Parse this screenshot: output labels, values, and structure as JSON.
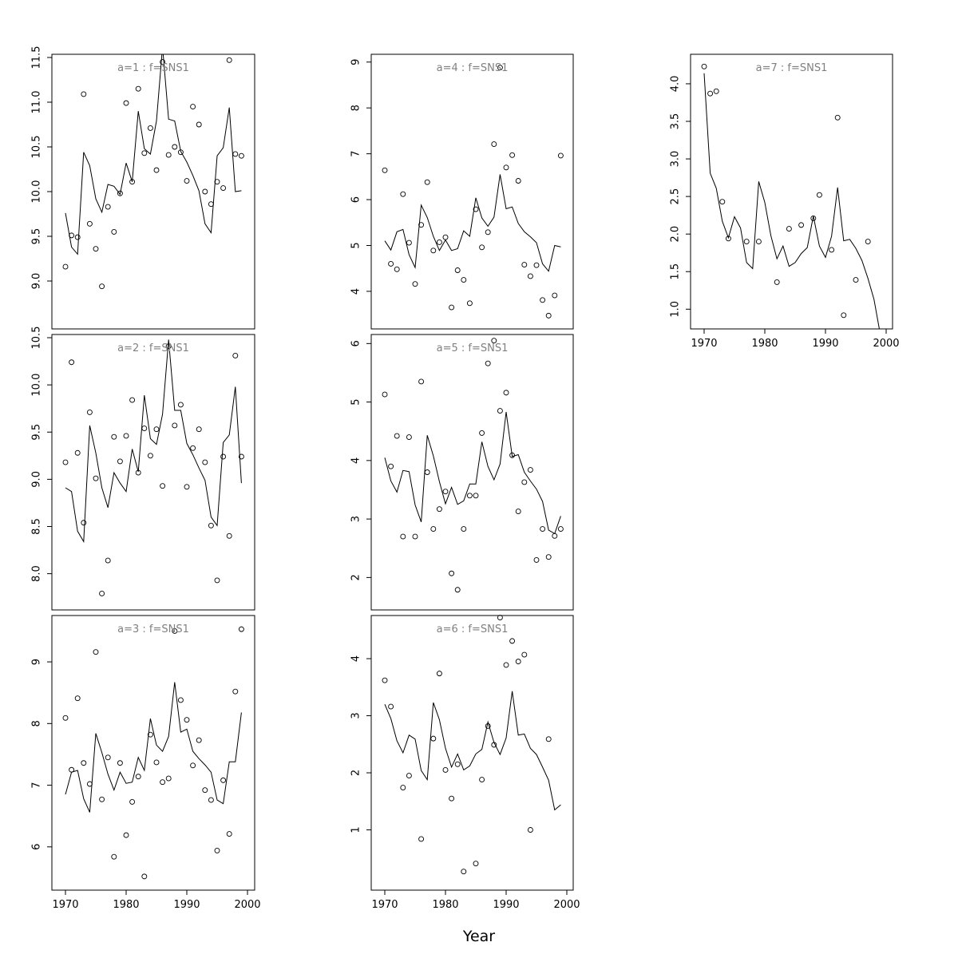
{
  "xlabel": "Year",
  "chart_data": [
    {
      "type": "scatter",
      "title": "a=1 : f=SNS1",
      "xlim": [
        1970,
        1999
      ],
      "ylim": [
        8.5,
        11.5
      ],
      "yticks": [
        9.0,
        9.5,
        10.0,
        10.5,
        11.0,
        11.5
      ],
      "xticks": [],
      "points": {
        "x": [
          1970,
          1971,
          1972,
          1973,
          1974,
          1975,
          1976,
          1977,
          1978,
          1979,
          1980,
          1981,
          1982,
          1983,
          1984,
          1985,
          1986,
          1987,
          1988,
          1989,
          1990,
          1991,
          1992,
          1993,
          1994,
          1995,
          1996,
          1997,
          1998,
          1999
        ],
        "y": [
          9.16,
          9.51,
          9.49,
          11.09,
          9.64,
          9.36,
          8.94,
          9.83,
          9.55,
          9.98,
          10.99,
          10.11,
          11.15,
          10.43,
          10.71,
          10.24,
          11.45,
          10.41,
          10.5,
          10.44,
          10.12,
          10.95,
          10.75,
          10.0,
          9.86,
          10.11,
          10.04,
          11.47,
          10.42,
          10.4
        ]
      },
      "fitted": {
        "x": [
          1970,
          1971,
          1972,
          1973,
          1974,
          1975,
          1976,
          1977,
          1978,
          1979,
          1980,
          1981,
          1982,
          1983,
          1984,
          1985,
          1986,
          1987,
          1988,
          1989,
          1990,
          1991,
          1992,
          1993,
          1994,
          1995,
          1996,
          1997,
          1998,
          1999
        ],
        "y": [
          9.76,
          9.38,
          9.3,
          10.44,
          10.29,
          9.92,
          9.77,
          10.08,
          10.06,
          9.97,
          10.32,
          10.11,
          10.9,
          10.48,
          10.42,
          10.79,
          11.62,
          10.81,
          10.79,
          10.45,
          10.33,
          10.18,
          10.01,
          9.64,
          9.54,
          10.4,
          10.49,
          10.94,
          10.0,
          10.01
        ]
      }
    },
    {
      "type": "scatter",
      "title": "a=2 : f=SNS1",
      "xlim": [
        1970,
        1999
      ],
      "ylim": [
        7.65,
        10.5
      ],
      "yticks": [
        8.0,
        8.5,
        9.0,
        9.5,
        10.0,
        10.5
      ],
      "xticks": [],
      "points": {
        "x": [
          1970,
          1971,
          1972,
          1973,
          1974,
          1975,
          1976,
          1977,
          1978,
          1979,
          1980,
          1981,
          1982,
          1983,
          1984,
          1985,
          1986,
          1987,
          1988,
          1989,
          1990,
          1991,
          1992,
          1993,
          1994,
          1995,
          1996,
          1997,
          1998,
          1999
        ],
        "y": [
          9.18,
          10.24,
          9.28,
          8.54,
          9.71,
          9.01,
          7.79,
          8.14,
          9.45,
          9.19,
          9.46,
          9.84,
          9.07,
          9.54,
          9.25,
          9.53,
          8.93,
          10.41,
          9.57,
          9.79,
          8.92,
          9.33,
          9.53,
          9.18,
          8.51,
          7.93,
          9.24,
          8.4,
          10.31,
          9.24
        ]
      },
      "fitted": {
        "x": [
          1970,
          1971,
          1972,
          1973,
          1974,
          1975,
          1976,
          1977,
          1978,
          1979,
          1980,
          1981,
          1982,
          1983,
          1984,
          1985,
          1986,
          1987,
          1988,
          1989,
          1990,
          1991,
          1992,
          1993,
          1994,
          1995,
          1996,
          1997,
          1998,
          1999
        ],
        "y": [
          8.91,
          8.87,
          8.45,
          8.34,
          9.57,
          9.28,
          8.91,
          8.7,
          9.07,
          8.96,
          8.87,
          9.32,
          9.08,
          9.89,
          9.43,
          9.37,
          9.69,
          10.48,
          9.73,
          9.73,
          9.38,
          9.26,
          9.12,
          8.99,
          8.6,
          8.51,
          9.39,
          9.47,
          9.98,
          8.96
        ]
      }
    },
    {
      "type": "scatter",
      "title": "a=3 : f=SNS1",
      "xlim": [
        1970,
        1999
      ],
      "ylim": [
        5.35,
        9.7
      ],
      "yticks": [
        6,
        7,
        8,
        9
      ],
      "xticks": [
        1970,
        1980,
        1990,
        2000
      ],
      "points": {
        "x": [
          1970,
          1971,
          1972,
          1973,
          1974,
          1975,
          1976,
          1977,
          1978,
          1979,
          1980,
          1981,
          1982,
          1983,
          1984,
          1985,
          1986,
          1987,
          1988,
          1989,
          1990,
          1991,
          1992,
          1993,
          1994,
          1995,
          1996,
          1997,
          1998,
          1999
        ],
        "y": [
          8.09,
          7.25,
          8.41,
          7.36,
          7.02,
          9.16,
          6.77,
          7.45,
          5.84,
          7.36,
          6.19,
          6.73,
          7.14,
          5.52,
          7.82,
          7.37,
          7.05,
          7.11,
          9.5,
          8.38,
          8.06,
          7.32,
          7.73,
          6.92,
          6.76,
          5.94,
          7.08,
          6.21,
          8.52,
          9.53
        ]
      },
      "fitted": {
        "x": [
          1970,
          1971,
          1972,
          1973,
          1974,
          1975,
          1976,
          1977,
          1978,
          1979,
          1980,
          1981,
          1982,
          1983,
          1984,
          1985,
          1986,
          1987,
          1988,
          1989,
          1990,
          1991,
          1992,
          1993,
          1994,
          1995,
          1996,
          1997,
          1998,
          1999
        ],
        "y": [
          6.85,
          7.21,
          7.24,
          6.78,
          6.56,
          7.84,
          7.53,
          7.18,
          6.92,
          7.21,
          7.03,
          7.05,
          7.45,
          7.24,
          8.08,
          7.65,
          7.55,
          7.79,
          8.67,
          7.86,
          7.91,
          7.55,
          7.43,
          7.33,
          7.21,
          6.76,
          6.7,
          7.38,
          7.38,
          8.18
        ]
      }
    },
    {
      "type": "scatter",
      "title": "a=4 : f=SNS1",
      "xlim": [
        1970,
        1999
      ],
      "ylim": [
        3.25,
        9.1
      ],
      "yticks": [
        4,
        5,
        6,
        7,
        8,
        9
      ],
      "xticks": [],
      "points": {
        "x": [
          1970,
          1971,
          1972,
          1973,
          1974,
          1975,
          1976,
          1977,
          1978,
          1979,
          1980,
          1981,
          1982,
          1983,
          1984,
          1985,
          1986,
          1987,
          1988,
          1989,
          1990,
          1991,
          1992,
          1993,
          1994,
          1995,
          1996,
          1997,
          1998,
          1999
        ],
        "y": [
          6.64,
          4.6,
          4.48,
          6.12,
          5.06,
          4.16,
          5.45,
          6.38,
          4.89,
          5.07,
          5.18,
          3.65,
          4.46,
          4.25,
          3.74,
          5.79,
          4.96,
          5.29,
          7.21,
          8.88,
          6.7,
          6.97,
          6.41,
          4.58,
          4.33,
          4.57,
          3.81,
          3.47,
          3.91,
          6.96
        ]
      },
      "fitted": {
        "x": [
          1970,
          1971,
          1972,
          1973,
          1974,
          1975,
          1976,
          1977,
          1978,
          1979,
          1980,
          1981,
          1982,
          1983,
          1984,
          1985,
          1986,
          1987,
          1988,
          1989,
          1990,
          1991,
          1992,
          1993,
          1994,
          1995,
          1996,
          1997,
          1998,
          1999
        ],
        "y": [
          5.1,
          4.9,
          5.3,
          5.35,
          4.8,
          4.52,
          5.88,
          5.61,
          5.2,
          4.89,
          5.12,
          4.89,
          4.93,
          5.32,
          5.2,
          6.04,
          5.6,
          5.42,
          5.62,
          6.55,
          5.8,
          5.84,
          5.48,
          5.3,
          5.19,
          5.06,
          4.6,
          4.44,
          5.0,
          4.97
        ]
      }
    },
    {
      "type": "scatter",
      "title": "a=5 : f=SNS1",
      "xlim": [
        1970,
        1999
      ],
      "ylim": [
        1.5,
        6.1
      ],
      "yticks": [
        2,
        3,
        4,
        5,
        6
      ],
      "xticks": [],
      "points": {
        "x": [
          1970,
          1971,
          1972,
          1973,
          1974,
          1975,
          1976,
          1977,
          1978,
          1979,
          1980,
          1981,
          1982,
          1983,
          1984,
          1985,
          1986,
          1987,
          1988,
          1989,
          1990,
          1991,
          1992,
          1993,
          1994,
          1995,
          1996,
          1997,
          1998,
          1999
        ],
        "y": [
          5.13,
          3.9,
          4.42,
          2.7,
          4.4,
          2.7,
          5.35,
          3.8,
          2.83,
          3.17,
          3.47,
          2.07,
          1.79,
          2.83,
          3.4,
          3.4,
          4.47,
          5.66,
          6.05,
          4.85,
          5.16,
          4.09,
          3.13,
          3.63,
          3.84,
          2.3,
          2.83,
          2.35,
          2.71,
          2.83
        ]
      },
      "fitted": {
        "x": [
          1970,
          1971,
          1972,
          1973,
          1974,
          1975,
          1976,
          1977,
          1978,
          1979,
          1980,
          1981,
          1982,
          1983,
          1984,
          1985,
          1986,
          1987,
          1988,
          1989,
          1990,
          1991,
          1992,
          1993,
          1994,
          1995,
          1996,
          1997,
          1998,
          1999
        ],
        "y": [
          4.05,
          3.65,
          3.46,
          3.83,
          3.81,
          3.24,
          2.95,
          4.43,
          4.08,
          3.64,
          3.26,
          3.54,
          3.25,
          3.31,
          3.6,
          3.6,
          4.32,
          3.9,
          3.67,
          3.94,
          4.83,
          4.07,
          4.1,
          3.8,
          3.65,
          3.51,
          3.3,
          2.81,
          2.75,
          3.05
        ]
      }
    },
    {
      "type": "scatter",
      "title": "a=6 : f=SNS1",
      "xlim": [
        1970,
        1999
      ],
      "ylim": [
        0.0,
        4.7
      ],
      "yticks": [
        1,
        2,
        3,
        4
      ],
      "xticks": [
        1970,
        1980,
        1990,
        2000
      ],
      "points": {
        "x": [
          1970,
          1971,
          1973,
          1974,
          1976,
          1978,
          1979,
          1980,
          1981,
          1982,
          1983,
          1985,
          1986,
          1987,
          1988,
          1989,
          1990,
          1991,
          1992,
          1993,
          1994,
          1997
        ],
        "y": [
          3.62,
          3.16,
          1.74,
          1.95,
          0.84,
          2.6,
          3.74,
          2.05,
          1.55,
          2.15,
          0.27,
          0.41,
          1.88,
          2.82,
          2.49,
          4.72,
          3.89,
          4.31,
          3.95,
          4.07,
          1.0,
          2.59
        ]
      },
      "fitted": {
        "x": [
          1970,
          1971,
          1972,
          1973,
          1974,
          1975,
          1976,
          1977,
          1978,
          1979,
          1980,
          1981,
          1982,
          1983,
          1984,
          1985,
          1986,
          1987,
          1988,
          1989,
          1990,
          1991,
          1992,
          1993,
          1994,
          1995,
          1996,
          1997,
          1998,
          1999
        ],
        "y": [
          3.2,
          2.95,
          2.56,
          2.35,
          2.66,
          2.59,
          2.04,
          1.88,
          3.23,
          2.93,
          2.43,
          2.1,
          2.33,
          2.05,
          2.12,
          2.33,
          2.41,
          2.89,
          2.53,
          2.32,
          2.61,
          3.43,
          2.66,
          2.68,
          2.43,
          2.32,
          2.1,
          1.87,
          1.35,
          1.44
        ]
      }
    },
    {
      "type": "scatter",
      "title": "a=7 : f=SNS1",
      "xlim": [
        1970,
        1999
      ],
      "ylim": [
        0.78,
        4.35
      ],
      "yticks": [
        1.0,
        1.5,
        2.0,
        2.5,
        3.0,
        3.5,
        4.0
      ],
      "xticks": [
        1970,
        1980,
        1990,
        2000
      ],
      "points": {
        "x": [
          1970,
          1971,
          1972,
          1973,
          1974,
          1977,
          1979,
          1982,
          1984,
          1986,
          1988,
          1989,
          1991,
          1992,
          1993,
          1995,
          1997
        ],
        "y": [
          4.23,
          3.87,
          3.9,
          2.43,
          1.94,
          1.9,
          1.9,
          1.36,
          2.07,
          2.12,
          2.21,
          2.52,
          1.79,
          3.55,
          0.92,
          1.39,
          1.9
        ]
      },
      "fitted": {
        "x": [
          1970,
          1971,
          1972,
          1973,
          1974,
          1975,
          1976,
          1977,
          1978,
          1979,
          1980,
          1981,
          1982,
          1983,
          1984,
          1985,
          1986,
          1987,
          1988,
          1989,
          1990,
          1991,
          1992,
          1993,
          1994,
          1995,
          1996,
          1997,
          1998,
          1999
        ],
        "y": [
          4.14,
          2.81,
          2.61,
          2.17,
          1.95,
          2.23,
          2.08,
          1.62,
          1.54,
          2.7,
          2.42,
          1.98,
          1.67,
          1.84,
          1.57,
          1.62,
          1.74,
          1.82,
          2.24,
          1.84,
          1.69,
          1.97,
          2.62,
          1.91,
          1.93,
          1.81,
          1.65,
          1.41,
          1.13,
          0.68
        ]
      }
    }
  ]
}
